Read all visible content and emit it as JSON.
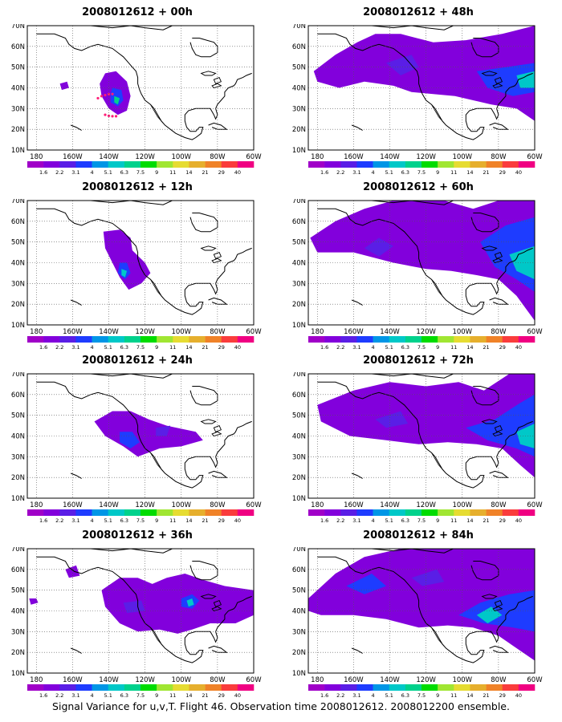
{
  "panels": [
    {
      "title": "2008012612 + 00h"
    },
    {
      "title": "2008012612 + 48h"
    },
    {
      "title": "2008012612 + 12h"
    },
    {
      "title": "2008012612 + 60h"
    },
    {
      "title": "2008012612 + 24h"
    },
    {
      "title": "2008012612 + 72h"
    },
    {
      "title": "2008012612 + 36h"
    },
    {
      "title": "2008012612 + 84h"
    }
  ],
  "axes": {
    "lat_labels": [
      "70N",
      "60N",
      "50N",
      "40N",
      "30N",
      "20N",
      "10N"
    ],
    "lon_labels": [
      "180",
      "160W",
      "140W",
      "120W",
      "100W",
      "80W",
      "60W"
    ]
  },
  "colorbar": {
    "labels": [
      "1.6",
      "2.2",
      "3.1",
      "4",
      "5.1",
      "6.3",
      "7.5",
      "9",
      "11",
      "14",
      "21",
      "29",
      "40"
    ],
    "colors": [
      "#a000c8",
      "#8200dc",
      "#5a1ee6",
      "#1e3cff",
      "#0096e6",
      "#00c8c8",
      "#00d28c",
      "#00dc00",
      "#a0e632",
      "#e6dc32",
      "#e6af2d",
      "#f08228",
      "#fa3c3c",
      "#f00082"
    ]
  },
  "footer": "Signal Variance for u,v,T. Flight 46. Observation time 2008012612. 2008012200 ensemble."
}
